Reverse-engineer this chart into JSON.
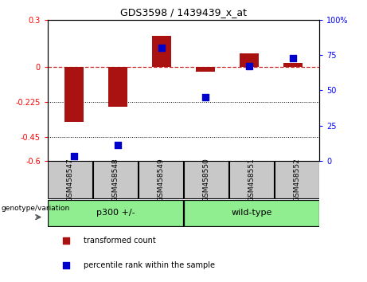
{
  "title": "GDS3598 / 1439439_x_at",
  "samples": [
    "GSM458547",
    "GSM458548",
    "GSM458549",
    "GSM458550",
    "GSM458551",
    "GSM458552"
  ],
  "transformed_count": [
    -0.35,
    -0.255,
    0.195,
    -0.03,
    0.085,
    0.025
  ],
  "percentile_rank": [
    3,
    11,
    80,
    45,
    67,
    73
  ],
  "ylim_left": [
    -0.6,
    0.3
  ],
  "ylim_right": [
    0,
    100
  ],
  "yticks_left": [
    -0.6,
    -0.45,
    -0.225,
    0,
    0.3
  ],
  "ytick_labels_left": [
    "-0.6",
    "-0.45",
    "-0.225",
    "0",
    "0.3"
  ],
  "yticks_right": [
    0,
    25,
    50,
    75,
    100
  ],
  "ytick_labels_right": [
    "0",
    "25",
    "50",
    "75",
    "100%"
  ],
  "bar_color": "#AA1111",
  "dot_color": "#0000CC",
  "hline_color": "#CC2222",
  "dotted_lines": [
    -0.225,
    -0.45
  ],
  "bar_width": 0.45,
  "dot_size": 30,
  "xlabel_group": "genotype/variation",
  "legend_items": [
    {
      "label": "transformed count",
      "color": "#AA1111"
    },
    {
      "label": "percentile rank within the sample",
      "color": "#0000CC"
    }
  ],
  "group_row_color": "#90EE90",
  "tick_box_color": "#C8C8C8",
  "groups_def": [
    {
      "label": "p300 +/-",
      "start": 0,
      "end": 3
    },
    {
      "label": "wild-type",
      "start": 3,
      "end": 6
    }
  ]
}
